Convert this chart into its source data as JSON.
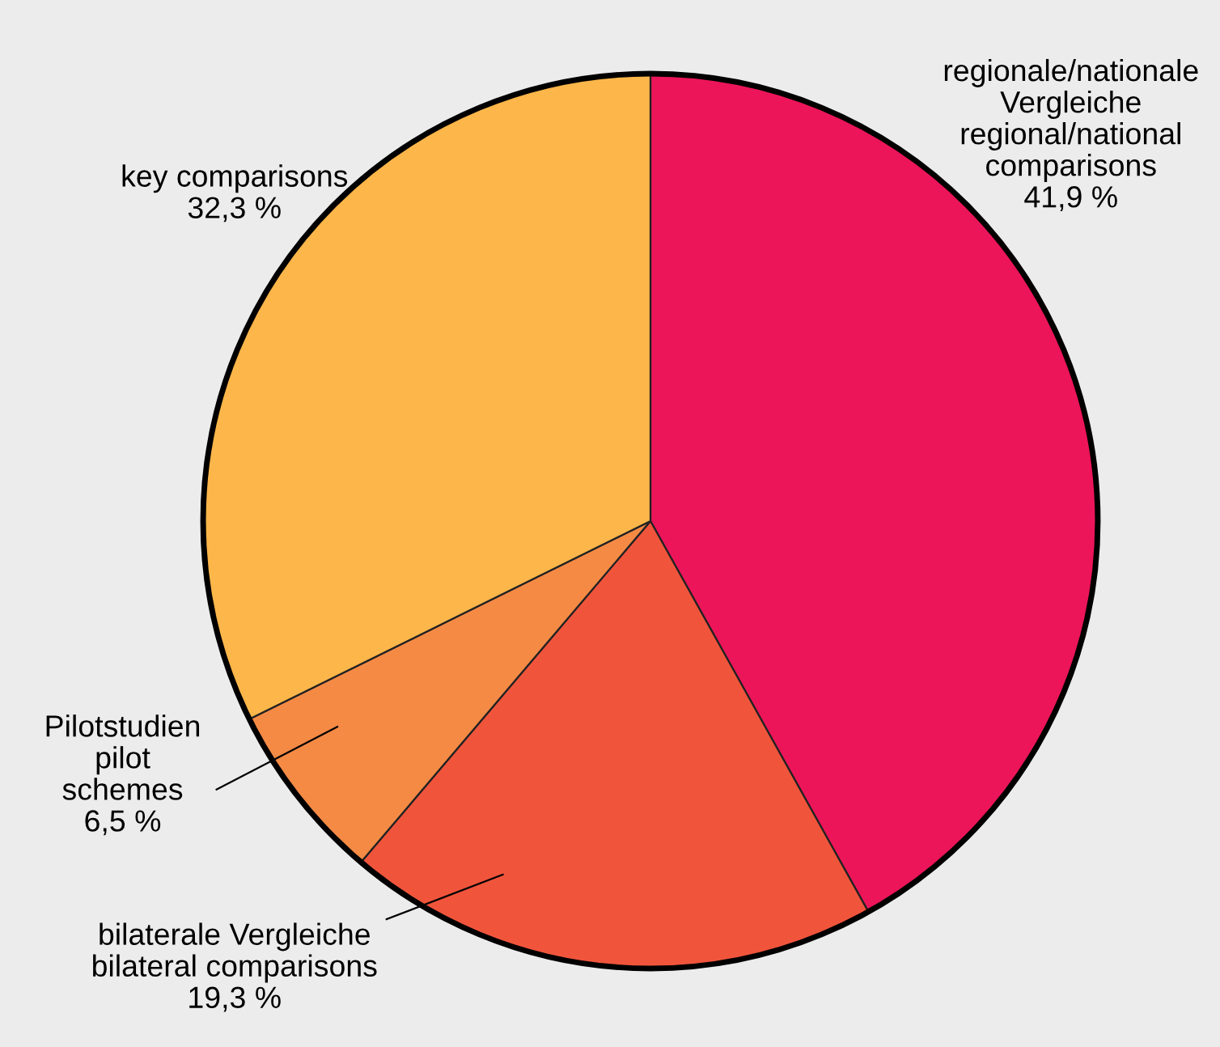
{
  "chart_data": {
    "type": "pie",
    "categories": [
      "regionale/nationale\nVergleiche\nregional/national\ncomparisons",
      "bilaterale Vergleiche\nbilateral comparisons",
      "Pilotstudien\npilot\nschemes",
      "key comparisons"
    ],
    "values": [
      41.9,
      19.3,
      6.5,
      32.3
    ],
    "value_labels": [
      "41,9 %",
      "19,3 %",
      "6,5 %",
      "32,3 %"
    ],
    "colors": [
      "#ec1559",
      "#f0553c",
      "#f58a45",
      "#fdb64a"
    ]
  }
}
